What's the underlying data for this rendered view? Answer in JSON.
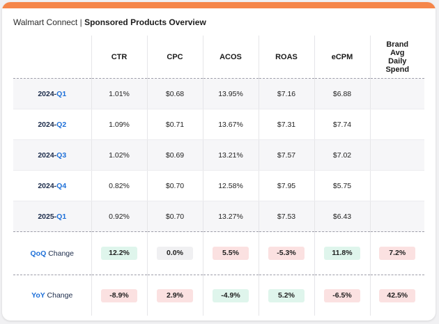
{
  "header": {
    "brand": "Walmart Connect",
    "separator": "|",
    "title": "Sponsored Products Overview"
  },
  "colors": {
    "accent_bar": "#f5864a",
    "positive_chip": "#dff5ec",
    "negative_chip": "#fbe1e1",
    "neutral_chip": "#f0f0f2",
    "link_blue": "#1d6fd8"
  },
  "table": {
    "columns": [
      "CTR",
      "CPC",
      "ACOS",
      "ROAS",
      "eCPM",
      "Brand Avg Daily Spend"
    ],
    "column_lines": [
      "Brand",
      "Avg",
      "Daily",
      "Spend"
    ],
    "rows": [
      {
        "year": "2024-",
        "q": "Q1",
        "values": [
          "1.01%",
          "$0.68",
          "13.95%",
          "$7.16",
          "$6.88",
          ""
        ]
      },
      {
        "year": "2024-",
        "q": "Q2",
        "values": [
          "1.09%",
          "$0.71",
          "13.67%",
          "$7.31",
          "$7.74",
          ""
        ]
      },
      {
        "year": "2024-",
        "q": "Q3",
        "values": [
          "1.02%",
          "$0.69",
          "13.21%",
          "$7.57",
          "$7.02",
          ""
        ]
      },
      {
        "year": "2024-",
        "q": "Q4",
        "values": [
          "0.82%",
          "$0.70",
          "12.58%",
          "$7.95",
          "$5.75",
          ""
        ]
      },
      {
        "year": "2025-",
        "q": "Q1",
        "values": [
          "0.92%",
          "$0.70",
          "13.27%",
          "$7.53",
          "$6.43",
          ""
        ]
      }
    ],
    "qoq": {
      "prefix": "QoQ",
      "suffix": "Change",
      "values": [
        "12.2%",
        "0.0%",
        "5.5%",
        "-5.3%",
        "11.8%",
        "7.2%"
      ],
      "tones": [
        "green",
        "neutral",
        "red",
        "red",
        "green",
        "red"
      ]
    },
    "yoy": {
      "prefix": "YoY",
      "suffix": "Change",
      "values": [
        "-8.9%",
        "2.9%",
        "-4.9%",
        "5.2%",
        "-6.5%",
        "42.5%"
      ],
      "tones": [
        "red",
        "red",
        "green",
        "green",
        "red",
        "red"
      ]
    }
  }
}
